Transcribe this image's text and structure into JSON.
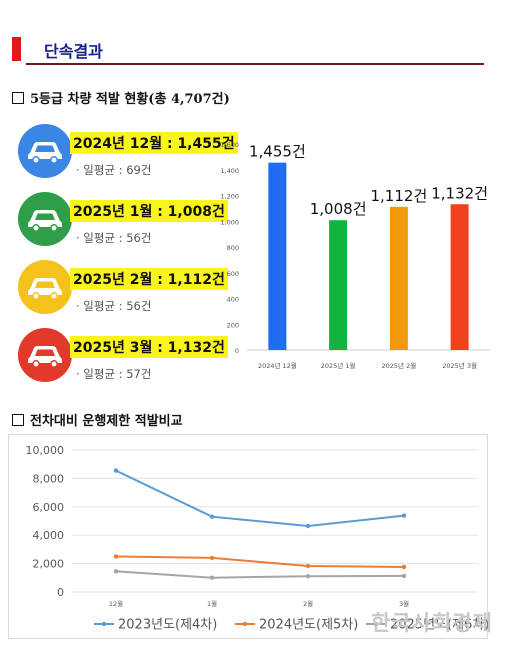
{
  "header": {
    "title": "단속결과"
  },
  "section1": {
    "title": "5등급 차량 적발 현황(총 4,707건)"
  },
  "section2": {
    "title": "전차대비 운행제한 적발비교"
  },
  "months": [
    {
      "label": "2024년 12월 : 1,455건",
      "daily": "일평균 : 69건",
      "color": "#3b86e4",
      "bullet": "·"
    },
    {
      "label": "2025년 1월 : 1,008건",
      "daily": "일평균 : 56건",
      "color": "#2f9e48",
      "bullet": "·"
    },
    {
      "label": "2025년 2월 : 1,112건",
      "daily": "일평균 : 56건",
      "color": "#f5c21b",
      "bullet": "·"
    },
    {
      "label": "2025년 3월 : 1,132건",
      "daily": "일평균 : 57건",
      "color": "#e23a2a",
      "bullet": "·"
    }
  ],
  "watermark": "한국사회경제",
  "chart_data": [
    {
      "type": "bar",
      "categories": [
        "2024년 12월",
        "2025년 1월",
        "2025년 2월",
        "2025년 3월"
      ],
      "values": [
        1455,
        1008,
        1112,
        1132
      ],
      "data_labels": [
        "1,455건",
        "1,008건",
        "1,112건",
        "1,132건"
      ],
      "colors": [
        "#1f6cf2",
        "#12b33f",
        "#f39a0c",
        "#f2421d"
      ],
      "ylim": [
        0,
        1600
      ],
      "yticks": [
        0,
        200,
        400,
        600,
        800,
        "1,000",
        "1,200",
        "1,400",
        "1,600"
      ],
      "ytick_values": [
        0,
        200,
        400,
        600,
        800,
        1000,
        1200,
        1400,
        1600
      ],
      "grid": false
    },
    {
      "type": "line",
      "categories": [
        "12월",
        "1월",
        "2월",
        "3월"
      ],
      "ylim": [
        0,
        10000
      ],
      "yticks": [
        "0",
        "2,000",
        "4,000",
        "6,000",
        "8,000",
        "10,000"
      ],
      "ytick_values": [
        0,
        2000,
        4000,
        6000,
        8000,
        10000
      ],
      "grid": true,
      "legend_position": "bottom",
      "series": [
        {
          "name": "2023년도(제4차)",
          "values": [
            8550,
            5300,
            4650,
            5380
          ],
          "color": "#5b9bd5"
        },
        {
          "name": "2024년도(제5차)",
          "values": [
            2500,
            2400,
            1830,
            1760
          ],
          "color": "#ed7d31"
        },
        {
          "name": "2025년도(제6차)",
          "values": [
            1455,
            1008,
            1112,
            1132
          ],
          "color": "#a5a5a5"
        }
      ]
    }
  ]
}
